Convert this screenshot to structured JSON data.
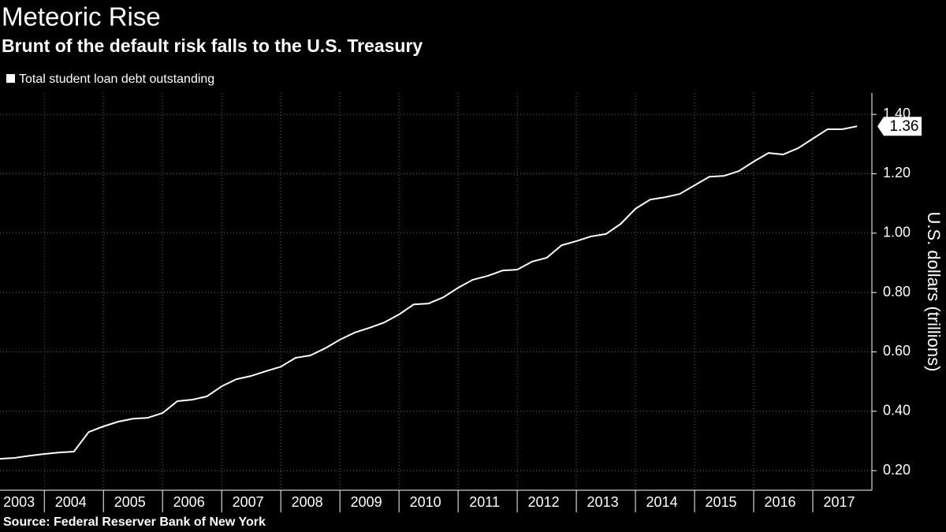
{
  "chart_data": {
    "type": "line",
    "title": "Meteoric Rise",
    "subtitle": "Brunt of the default risk falls to the U.S. Treasury",
    "source": "Source: Federal Reserver Bank of New York",
    "y_label": "U.S. dollars (trillions)",
    "categories": [
      "2003",
      "2004",
      "2005",
      "2006",
      "2007",
      "2008",
      "2009",
      "2010",
      "2011",
      "2012",
      "2013",
      "2014",
      "2015",
      "2016",
      "2017"
    ],
    "x": [
      2003.25,
      2003.5,
      2003.75,
      2004,
      2004.25,
      2004.5,
      2004.75,
      2005,
      2005.25,
      2005.5,
      2005.75,
      2006,
      2006.25,
      2006.5,
      2006.75,
      2007,
      2007.25,
      2007.5,
      2007.75,
      2008,
      2008.25,
      2008.5,
      2008.75,
      2009,
      2009.25,
      2009.5,
      2009.75,
      2010,
      2010.25,
      2010.5,
      2010.75,
      2011,
      2011.25,
      2011.5,
      2011.75,
      2012,
      2012.25,
      2012.5,
      2012.75,
      2013,
      2013.25,
      2013.5,
      2013.75,
      2014,
      2014.25,
      2014.5,
      2014.75,
      2015,
      2015.25,
      2015.5,
      2015.75,
      2016,
      2016.25,
      2016.5,
      2016.75,
      2017,
      2017.25,
      2017.5,
      2017.75
    ],
    "series": [
      {
        "name": "Total student loan debt outstanding",
        "color": "#ffffff",
        "values": [
          0.24,
          0.243,
          0.25,
          0.256,
          0.261,
          0.264,
          0.33,
          0.349,
          0.365,
          0.375,
          0.378,
          0.394,
          0.434,
          0.439,
          0.45,
          0.484,
          0.508,
          0.519,
          0.535,
          0.55,
          0.58,
          0.588,
          0.612,
          0.641,
          0.665,
          0.681,
          0.699,
          0.726,
          0.76,
          0.763,
          0.784,
          0.816,
          0.843,
          0.856,
          0.874,
          0.877,
          0.904,
          0.917,
          0.959,
          0.973,
          0.989,
          0.997,
          1.031,
          1.082,
          1.113,
          1.121,
          1.132,
          1.161,
          1.19,
          1.193,
          1.209,
          1.241,
          1.27,
          1.265,
          1.286,
          1.318,
          1.35,
          1.35,
          1.36
        ]
      }
    ],
    "xlim": [
      2003.25,
      2018
    ],
    "ylim": [
      0.134,
      1.472
    ],
    "yticks": [
      {
        "value": 0.2,
        "label": "0.20"
      },
      {
        "value": 0.4,
        "label": "0.40"
      },
      {
        "value": 0.6,
        "label": "0.60"
      },
      {
        "value": 0.8,
        "label": "0.80"
      },
      {
        "value": 1.0,
        "label": "1.00"
      },
      {
        "value": 1.2,
        "label": "1.20"
      },
      {
        "value": 1.4,
        "label": "1.40"
      }
    ],
    "grid": true
  }
}
